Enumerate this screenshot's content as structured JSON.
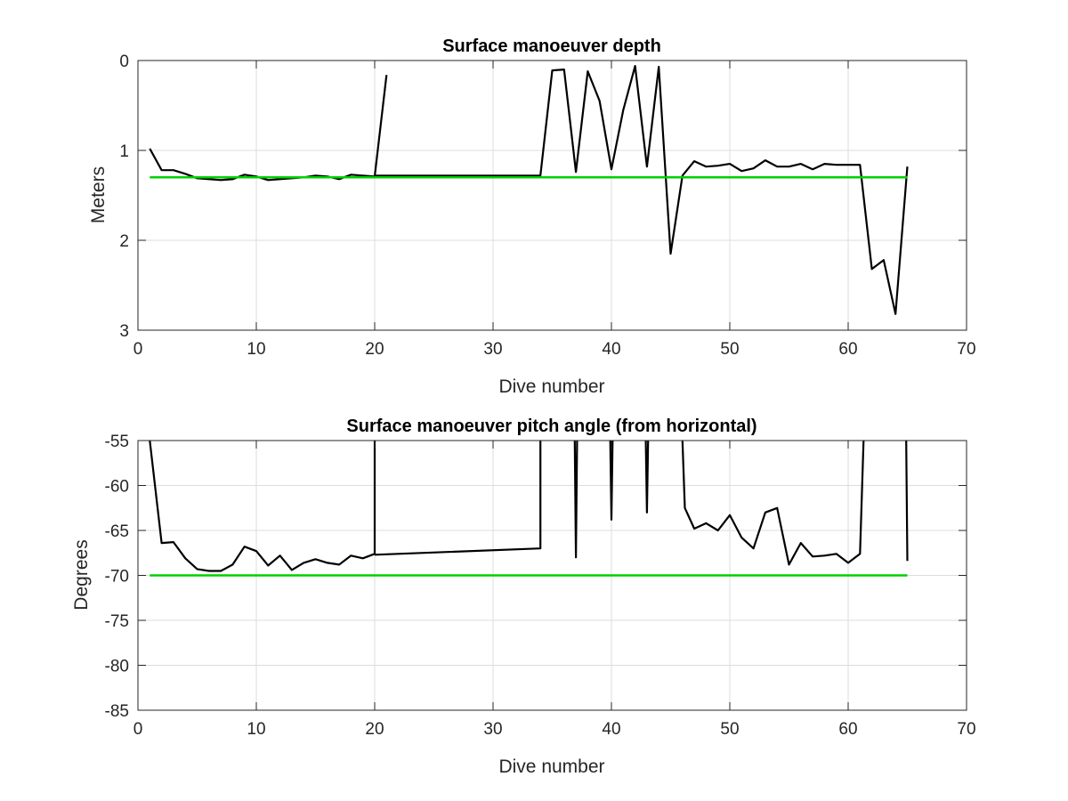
{
  "chart_data": [
    {
      "type": "line",
      "title": "Surface manoeuver depth",
      "xlabel": "Dive number",
      "ylabel": "Meters",
      "xlim": [
        0,
        70
      ],
      "ylim": [
        0,
        3
      ],
      "y_reversed": true,
      "grid": true,
      "xticks": [
        "0",
        "10",
        "20",
        "30",
        "40",
        "50",
        "60",
        "70"
      ],
      "yticks": [
        "0",
        "1",
        "2",
        "3"
      ],
      "series": [
        {
          "color": "#000000",
          "points": [
            [
              1,
              0.98
            ],
            [
              2,
              1.22
            ],
            [
              3,
              1.22
            ],
            [
              4,
              1.26
            ],
            [
              5,
              1.31
            ],
            [
              6,
              1.32
            ],
            [
              7,
              1.33
            ],
            [
              8,
              1.32
            ],
            [
              9,
              1.27
            ],
            [
              10,
              1.29
            ],
            [
              11,
              1.33
            ],
            [
              12,
              1.32
            ],
            [
              13,
              1.31
            ],
            [
              14,
              1.3
            ],
            [
              15,
              1.28
            ],
            [
              16,
              1.29
            ],
            [
              17,
              1.32
            ],
            [
              18,
              1.27
            ],
            [
              19,
              1.28
            ],
            [
              20,
              1.29
            ],
            [
              21,
              0.16
            ]
          ]
        },
        {
          "color": "#000000",
          "points": [
            [
              20,
              1.28
            ],
            [
              34,
              1.28
            ],
            [
              35,
              0.11
            ],
            [
              36,
              0.1
            ],
            [
              37,
              1.24
            ],
            [
              38,
              0.12
            ],
            [
              39,
              0.45
            ],
            [
              40,
              1.21
            ],
            [
              41,
              0.55
            ],
            [
              42,
              0.06
            ],
            [
              43,
              1.18
            ],
            [
              44,
              0.07
            ],
            [
              45,
              2.15
            ],
            [
              46,
              1.28
            ],
            [
              47,
              1.12
            ],
            [
              48,
              1.18
            ],
            [
              49,
              1.17
            ],
            [
              50,
              1.15
            ],
            [
              51,
              1.23
            ],
            [
              52,
              1.2
            ],
            [
              53,
              1.11
            ],
            [
              54,
              1.18
            ],
            [
              55,
              1.18
            ],
            [
              56,
              1.15
            ],
            [
              57,
              1.21
            ],
            [
              58,
              1.15
            ],
            [
              59,
              1.16
            ],
            [
              60,
              1.16
            ],
            [
              61,
              1.16
            ],
            [
              62,
              2.32
            ],
            [
              63,
              2.22
            ],
            [
              64,
              2.82
            ],
            [
              65,
              1.18
            ]
          ]
        },
        {
          "color": "#00d000",
          "points": [
            [
              1,
              1.3
            ],
            [
              65,
              1.3
            ]
          ]
        }
      ]
    },
    {
      "type": "line",
      "title": "Surface manoeuver pitch angle (from horizontal)",
      "xlabel": "Dive number",
      "ylabel": "Degrees",
      "xlim": [
        0,
        70
      ],
      "ylim": [
        -85,
        -55
      ],
      "y_reversed": false,
      "grid": true,
      "xticks": [
        "0",
        "10",
        "20",
        "30",
        "40",
        "50",
        "60",
        "70"
      ],
      "yticks": [
        "-55",
        "-60",
        "-65",
        "-70",
        "-75",
        "-80",
        "-85"
      ],
      "series": [
        {
          "color": "#000000",
          "points": [
            [
              1,
              -55.0
            ],
            [
              2,
              -66.4
            ],
            [
              3,
              -66.3
            ],
            [
              4,
              -68.1
            ],
            [
              5,
              -69.3
            ],
            [
              6,
              -69.5
            ],
            [
              7,
              -69.5
            ],
            [
              8,
              -68.8
            ],
            [
              9,
              -66.8
            ],
            [
              10,
              -67.3
            ],
            [
              11,
              -68.9
            ],
            [
              12,
              -67.8
            ],
            [
              13,
              -69.4
            ],
            [
              14,
              -68.6
            ],
            [
              15,
              -68.2
            ],
            [
              16,
              -68.6
            ],
            [
              17,
              -68.8
            ],
            [
              18,
              -67.8
            ],
            [
              19,
              -68.1
            ],
            [
              20,
              -67.6
            ],
            [
              20,
              -55.0
            ]
          ]
        },
        {
          "color": "#000000",
          "points": [
            [
              20,
              -67.7
            ],
            [
              34,
              -67.0
            ],
            [
              34,
              -55.0
            ]
          ]
        },
        {
          "color": "#000000",
          "points": [
            [
              36.9,
              -55.0
            ],
            [
              37,
              -68.0
            ],
            [
              37.1,
              -55.0
            ]
          ]
        },
        {
          "color": "#000000",
          "points": [
            [
              39.9,
              -55.0
            ],
            [
              40,
              -63.8
            ],
            [
              40.1,
              -55.0
            ]
          ]
        },
        {
          "color": "#000000",
          "points": [
            [
              42.9,
              -55.0
            ],
            [
              43,
              -63.0
            ],
            [
              43.1,
              -55.0
            ]
          ]
        },
        {
          "color": "#000000",
          "points": [
            [
              46,
              -55.0
            ],
            [
              46.2,
              -62.5
            ],
            [
              47,
              -64.8
            ],
            [
              48,
              -64.2
            ],
            [
              49,
              -65.0
            ],
            [
              50,
              -63.3
            ],
            [
              51,
              -65.8
            ],
            [
              52,
              -67.0
            ],
            [
              53,
              -63.0
            ],
            [
              54,
              -62.5
            ],
            [
              55,
              -68.8
            ],
            [
              56,
              -66.4
            ],
            [
              57,
              -67.9
            ],
            [
              58,
              -67.8
            ],
            [
              59,
              -67.6
            ],
            [
              60,
              -68.6
            ],
            [
              61,
              -67.6
            ],
            [
              61.3,
              -55.0
            ]
          ]
        },
        {
          "color": "#000000",
          "points": [
            [
              64.9,
              -55.0
            ],
            [
              65,
              -68.4
            ]
          ]
        },
        {
          "color": "#00d000",
          "points": [
            [
              1,
              -70.0
            ],
            [
              65,
              -70.0
            ]
          ]
        }
      ]
    }
  ]
}
